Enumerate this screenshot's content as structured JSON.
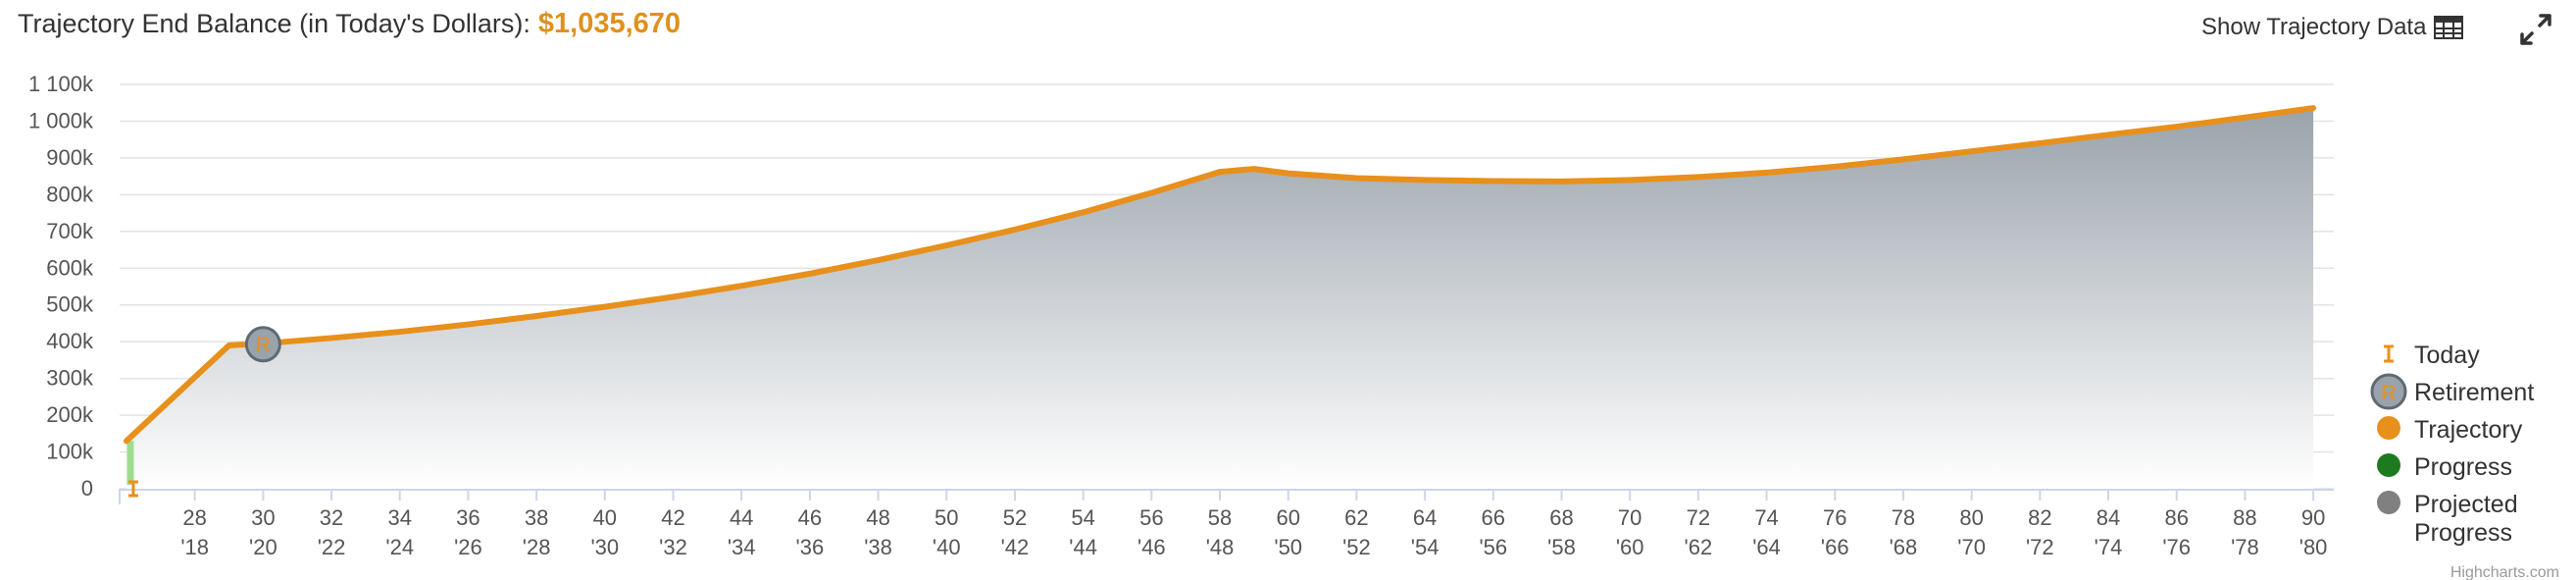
{
  "header": {
    "title": "Trajectory End Balance (in Today's Dollars):",
    "balance": "$1,035,670",
    "show_data_label": "Show Trajectory Data"
  },
  "icons": {
    "table": "table-icon",
    "expand": "expand-icon"
  },
  "colors": {
    "trajectory": "#e8901c",
    "progress": "#1e7a1e",
    "projected_progress": "#808080",
    "area_top": "#9aa3ab",
    "area_bottom": "#ffffff"
  },
  "credits": "Highcharts.com",
  "chart_data": {
    "type": "area",
    "title": "Trajectory End Balance (in Today's Dollars): $1,035,670",
    "y_tick_labels": [
      "0",
      "100k",
      "200k",
      "300k",
      "400k",
      "500k",
      "600k",
      "700k",
      "800k",
      "900k",
      "1 000k",
      "1 100k"
    ],
    "ylim": [
      0,
      1100000
    ],
    "xlim": [
      25.8,
      90.6
    ],
    "x_ages": [
      "28",
      "30",
      "32",
      "34",
      "36",
      "38",
      "40",
      "42",
      "44",
      "46",
      "48",
      "50",
      "52",
      "54",
      "56",
      "58",
      "60",
      "62",
      "64",
      "66",
      "68",
      "70",
      "72",
      "74",
      "76",
      "78",
      "80",
      "82",
      "84",
      "86",
      "88",
      "90"
    ],
    "x_years": [
      "'18",
      "'20",
      "'22",
      "'24",
      "'26",
      "'28",
      "'30",
      "'32",
      "'34",
      "'36",
      "'38",
      "'40",
      "'42",
      "'44",
      "'46",
      "'48",
      "'50",
      "'52",
      "'54",
      "'56",
      "'58",
      "'60",
      "'62",
      "'64",
      "'66",
      "'68",
      "'70",
      "'72",
      "'74",
      "'76",
      "'78",
      "'80"
    ],
    "grid": true,
    "legend_position": "right",
    "series": [
      {
        "name": "Trajectory",
        "x": [
          26,
          29,
          30,
          32,
          34,
          36,
          38,
          40,
          42,
          44,
          46,
          48,
          50,
          52,
          54,
          56,
          58,
          59,
          60,
          62,
          64,
          66,
          68,
          70,
          72,
          74,
          76,
          78,
          80,
          82,
          84,
          86,
          88,
          90
        ],
        "values": [
          130000,
          390000,
          395000,
          410000,
          427000,
          447000,
          470000,
          495000,
          522000,
          552000,
          585000,
          622000,
          662000,
          705000,
          752000,
          805000,
          862000,
          870000,
          858000,
          845000,
          840000,
          837000,
          836000,
          840000,
          848000,
          860000,
          876000,
          896000,
          918000,
          940000,
          963000,
          985000,
          1010000,
          1035670
        ]
      }
    ],
    "markers": [
      {
        "name": "Today",
        "x": 26.2,
        "y": 0
      },
      {
        "name": "Retirement",
        "x": 30,
        "y": 393000
      }
    ],
    "legend": [
      "Today",
      "Retirement",
      "Trajectory",
      "Progress",
      "Projected Progress"
    ]
  }
}
